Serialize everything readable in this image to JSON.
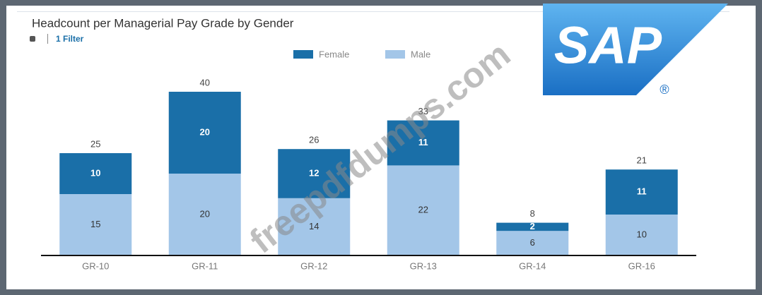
{
  "chart_data": {
    "type": "stacked-bar",
    "title": "Headcount per Managerial Pay Grade by Gender",
    "filter": "1 Filter",
    "categories": [
      "GR-10",
      "GR-11",
      "GR-12",
      "GR-13",
      "GR-14",
      "GR-16"
    ],
    "series": [
      {
        "name": "Female",
        "color": "#1a6fa8",
        "values": [
          10,
          20,
          12,
          11,
          2,
          11
        ]
      },
      {
        "name": "Male",
        "color": "#a3c6e8",
        "values": [
          15,
          20,
          14,
          22,
          6,
          10
        ]
      }
    ],
    "totals": [
      25,
      40,
      26,
      33,
      8,
      21
    ],
    "ylim": [
      0,
      45
    ],
    "legend": "top",
    "watermark": "freepdfdumps.com",
    "logo": "SAP",
    "logo_mark": "®"
  }
}
